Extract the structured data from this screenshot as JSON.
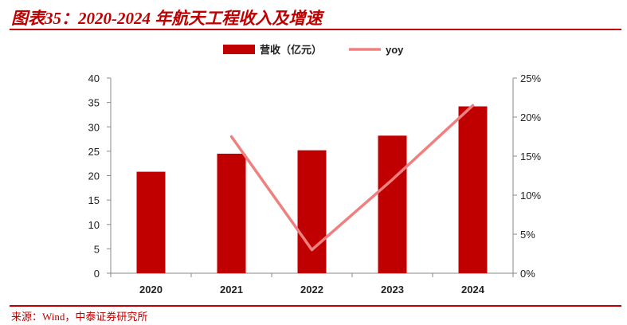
{
  "header": {
    "title": "图表35：2020-2024 年航天工程收入及增速"
  },
  "footer": {
    "source": "来源：Wind，中泰证券研究所"
  },
  "colors": {
    "accent": "#C00000",
    "bar": "#C00000",
    "line": "#F08080"
  },
  "chart_data": {
    "type": "bar",
    "categories": [
      "2020",
      "2021",
      "2022",
      "2023",
      "2024"
    ],
    "series": [
      {
        "name": "营收（亿元）",
        "type": "bar",
        "axis": "left",
        "values": [
          20.8,
          24.5,
          25.2,
          28.2,
          34.2
        ]
      },
      {
        "name": "yoy",
        "type": "line",
        "axis": "right",
        "values": [
          null,
          0.175,
          0.03,
          0.12,
          0.215
        ]
      }
    ],
    "ylim": [
      0,
      40
    ],
    "ylim_right": [
      0,
      0.25
    ],
    "yticks": [
      "0",
      "5",
      "10",
      "15",
      "20",
      "25",
      "30",
      "35",
      "40"
    ],
    "yticks_right": [
      "0%",
      "5%",
      "10%",
      "15%",
      "20%",
      "25%"
    ],
    "grid": false,
    "legend_position": "top-center"
  }
}
